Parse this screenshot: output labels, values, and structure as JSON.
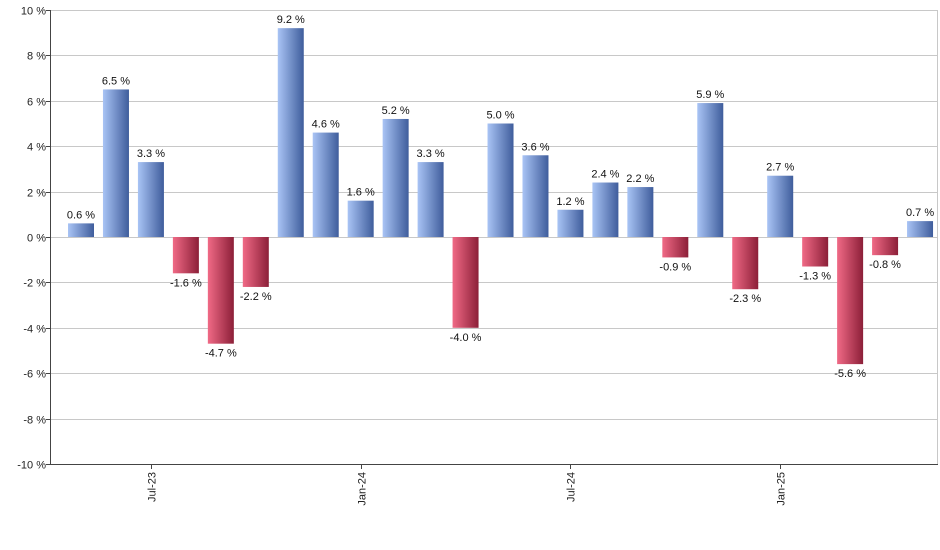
{
  "chart_data": {
    "type": "bar",
    "unit_suffix": " %",
    "ylim": [
      -10,
      10
    ],
    "y_ticks": [
      {
        "value": 10,
        "label": "10 %"
      },
      {
        "value": 8,
        "label": "8 %"
      },
      {
        "value": 6,
        "label": "6 %"
      },
      {
        "value": 4,
        "label": "4 %"
      },
      {
        "value": 2,
        "label": "2 %"
      },
      {
        "value": 0,
        "label": "0 %"
      },
      {
        "value": -2,
        "label": "-2 %"
      },
      {
        "value": -4,
        "label": "-4 %"
      },
      {
        "value": -6,
        "label": "-6 %"
      },
      {
        "value": -8,
        "label": "-8 %"
      },
      {
        "value": -10,
        "label": "-10 %"
      }
    ],
    "x_ticks": [
      {
        "index": 2,
        "label": "Jul-23"
      },
      {
        "index": 8,
        "label": "Jan-24"
      },
      {
        "index": 14,
        "label": "Jul-24"
      },
      {
        "index": 20,
        "label": "Jan-25"
      }
    ],
    "values": [
      0.6,
      6.5,
      3.3,
      -1.6,
      -4.7,
      -2.2,
      9.2,
      4.6,
      1.6,
      5.2,
      3.3,
      -4.0,
      5.0,
      3.6,
      1.2,
      2.4,
      2.2,
      -0.9,
      5.9,
      -2.3,
      2.7,
      -1.3,
      -5.6,
      -0.8,
      0.7
    ],
    "labels": [
      "0.6 %",
      "6.5 %",
      "3.3 %",
      "-1.6 %",
      "-4.7 %",
      "-2.2 %",
      "9.2 %",
      "4.6 %",
      "1.6 %",
      "5.2 %",
      "3.3 %",
      "-4.0 %",
      "5.0 %",
      "3.6 %",
      "1.2 %",
      "2.4 %",
      "2.2 %",
      "-0.9 %",
      "5.9 %",
      "-2.3 %",
      "2.7 %",
      "-1.3 %",
      "-5.6 %",
      "-0.8 %",
      "0.7 %"
    ],
    "grid": true,
    "colors": {
      "positive_light": "#a9c4f5",
      "positive_dark": "#3f5d9c",
      "negative_light": "#f06a86",
      "negative_dark": "#8c1f38",
      "grid": "#c8c8c8",
      "axis": "#444444"
    }
  }
}
